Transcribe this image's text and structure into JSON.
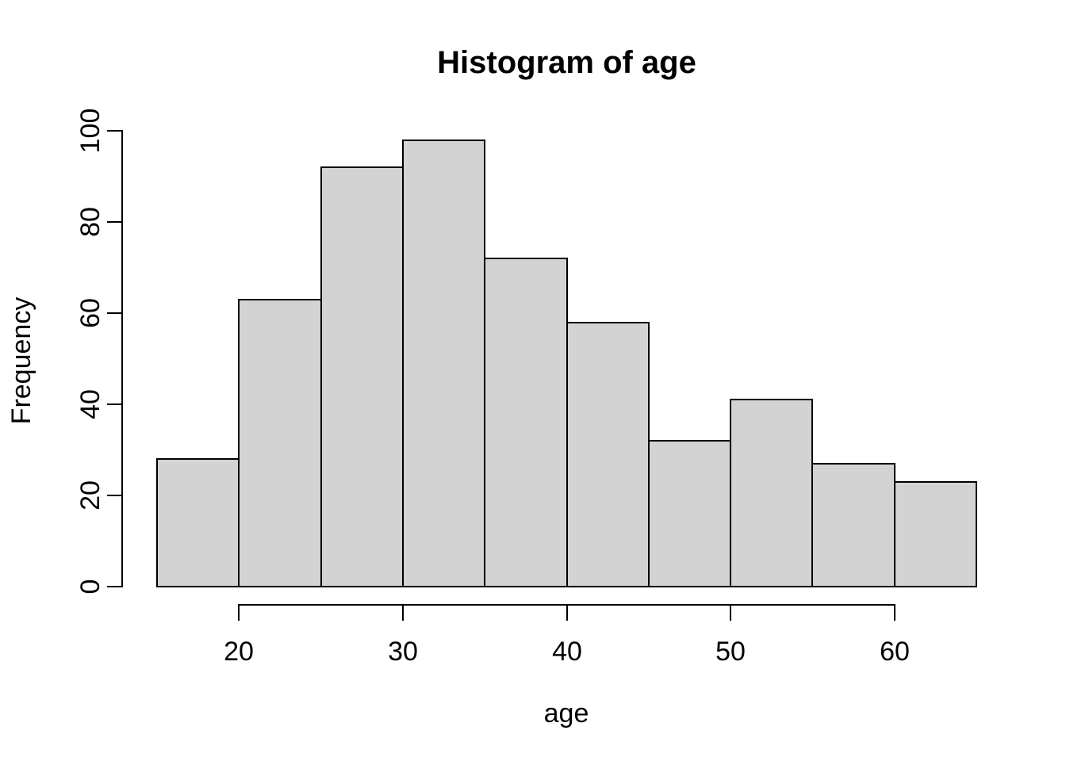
{
  "figure": {
    "background": "#ffffff",
    "text_color": "#000000"
  },
  "chart_data": {
    "type": "bar",
    "variant": "histogram",
    "title": "Histogram of age",
    "xlabel": "age",
    "ylabel": "Frequency",
    "bin_edges": [
      15,
      20,
      25,
      30,
      35,
      40,
      45,
      50,
      55,
      60,
      65
    ],
    "counts": [
      28,
      63,
      92,
      98,
      72,
      58,
      32,
      41,
      27,
      23
    ],
    "x_ticks": [
      20,
      30,
      40,
      50,
      60
    ],
    "y_ticks": [
      0,
      20,
      40,
      60,
      80,
      100
    ],
    "xlim": [
      15,
      65
    ],
    "ylim": [
      0,
      100
    ],
    "bar_fill": "#d3d3d3",
    "bar_border": "#000000",
    "axis_color": "#000000",
    "grid": false,
    "legend": null
  }
}
